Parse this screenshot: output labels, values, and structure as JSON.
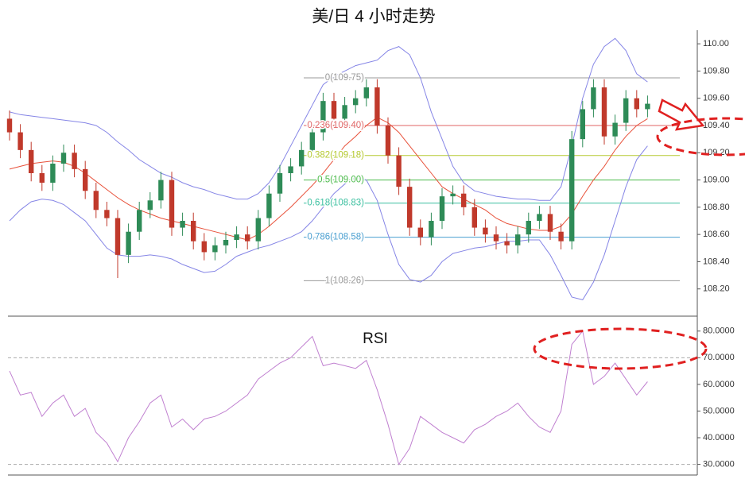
{
  "chart_data": [
    {
      "type": "candlestick",
      "title": "美/日  4 小时走势",
      "up_color": "#2e8b57",
      "down_color": "#c0392b",
      "open": [
        109.45,
        109.35,
        109.22,
        109.05,
        108.98,
        109.12,
        109.2,
        109.08,
        108.92,
        108.78,
        108.72,
        108.45,
        108.62,
        108.78,
        108.85,
        109.0,
        108.65,
        108.7,
        108.55,
        108.47,
        108.52,
        108.56,
        108.6,
        108.55,
        108.72,
        108.9,
        109.05,
        109.1,
        109.22,
        109.35,
        109.58,
        109.45,
        109.55,
        109.6,
        109.68,
        109.4,
        109.18,
        108.95,
        108.65,
        108.58,
        108.7,
        108.88,
        108.9,
        108.8,
        108.65,
        108.6,
        108.55,
        108.52,
        108.6,
        108.7,
        108.75,
        108.62,
        108.55,
        109.3,
        109.52,
        109.68,
        109.32,
        109.42,
        109.6,
        109.52
      ],
      "high": [
        109.51,
        109.41,
        109.28,
        109.11,
        109.18,
        109.26,
        109.26,
        109.14,
        108.98,
        108.84,
        108.78,
        108.68,
        108.84,
        108.91,
        109.06,
        109.06,
        108.76,
        108.76,
        108.61,
        108.58,
        108.62,
        108.66,
        108.66,
        108.78,
        108.96,
        109.11,
        109.16,
        109.28,
        109.41,
        109.64,
        109.64,
        109.61,
        109.66,
        109.74,
        109.74,
        109.46,
        109.24,
        109.01,
        108.71,
        108.76,
        108.94,
        108.96,
        108.96,
        108.86,
        108.71,
        108.66,
        108.61,
        108.66,
        108.76,
        108.81,
        108.81,
        108.68,
        109.36,
        109.58,
        109.74,
        109.74,
        109.48,
        109.66,
        109.66,
        109.62
      ],
      "low": [
        109.29,
        109.16,
        108.99,
        108.92,
        108.92,
        109.06,
        109.02,
        108.86,
        108.72,
        108.66,
        108.28,
        108.39,
        108.56,
        108.72,
        108.79,
        108.59,
        108.59,
        108.49,
        108.41,
        108.41,
        108.46,
        108.5,
        108.49,
        108.49,
        108.66,
        108.84,
        108.99,
        109.04,
        109.16,
        109.29,
        109.39,
        109.39,
        109.49,
        109.54,
        109.34,
        109.12,
        108.89,
        108.59,
        108.52,
        108.52,
        108.64,
        108.82,
        108.74,
        108.59,
        108.54,
        108.49,
        108.46,
        108.46,
        108.54,
        108.64,
        108.56,
        108.49,
        108.49,
        109.24,
        109.46,
        109.26,
        109.26,
        109.36,
        109.46,
        109.46
      ],
      "close": [
        109.35,
        109.22,
        109.05,
        108.98,
        109.12,
        109.2,
        109.08,
        108.92,
        108.78,
        108.72,
        108.45,
        108.62,
        108.78,
        108.85,
        109.0,
        108.65,
        108.7,
        108.55,
        108.47,
        108.52,
        108.56,
        108.6,
        108.55,
        108.72,
        108.9,
        109.05,
        109.1,
        109.22,
        109.35,
        109.58,
        109.45,
        109.55,
        109.6,
        109.68,
        109.4,
        109.18,
        108.95,
        108.65,
        108.58,
        108.7,
        108.88,
        108.9,
        108.8,
        108.65,
        108.6,
        108.55,
        108.52,
        108.6,
        108.7,
        108.75,
        108.62,
        108.55,
        109.3,
        109.52,
        109.68,
        109.32,
        109.42,
        109.6,
        109.52,
        109.56
      ],
      "lines": [
        {
          "color": "#e8513a",
          "values": [
            109.08,
            109.1,
            109.12,
            109.13,
            109.14,
            109.13,
            109.1,
            109.05,
            108.99,
            108.93,
            108.87,
            108.82,
            108.78,
            108.75,
            108.72,
            108.7,
            108.68,
            108.66,
            108.64,
            108.62,
            108.6,
            108.58,
            108.56,
            108.6,
            108.66,
            108.73,
            108.8,
            108.88,
            108.96,
            109.05,
            109.15,
            109.25,
            109.32,
            109.4,
            109.46,
            109.42,
            109.35,
            109.25,
            109.15,
            109.05,
            108.95,
            108.9,
            108.86,
            108.82,
            108.78,
            108.72,
            108.68,
            108.66,
            108.64,
            108.63,
            108.63,
            108.66,
            108.75,
            108.88,
            109.0,
            109.1,
            109.22,
            109.32,
            109.4,
            109.45
          ]
        },
        {
          "color": "#8585e6",
          "values": [
            109.5,
            109.48,
            109.47,
            109.46,
            109.45,
            109.44,
            109.43,
            109.42,
            109.4,
            109.35,
            109.28,
            109.22,
            109.15,
            109.1,
            109.05,
            109.02,
            108.98,
            108.95,
            108.93,
            108.9,
            108.88,
            108.86,
            108.86,
            108.9,
            108.98,
            109.1,
            109.25,
            109.4,
            109.55,
            109.7,
            109.76,
            109.8,
            109.84,
            109.86,
            109.88,
            109.95,
            109.98,
            109.92,
            109.75,
            109.5,
            109.3,
            109.1,
            108.98,
            108.92,
            108.9,
            108.88,
            108.87,
            108.86,
            108.86,
            108.85,
            108.85,
            108.95,
            109.25,
            109.6,
            109.85,
            109.98,
            110.04,
            109.95,
            109.78,
            109.72
          ]
        },
        {
          "color": "#8585e6",
          "values": [
            108.7,
            108.78,
            108.84,
            108.86,
            108.85,
            108.82,
            108.76,
            108.7,
            108.6,
            108.5,
            108.45,
            108.44,
            108.44,
            108.45,
            108.44,
            108.42,
            108.38,
            108.35,
            108.32,
            108.33,
            108.38,
            108.44,
            108.47,
            108.5,
            108.52,
            108.55,
            108.58,
            108.62,
            108.7,
            108.8,
            108.9,
            108.97,
            109.02,
            109.0,
            108.85,
            108.6,
            108.38,
            108.27,
            108.25,
            108.3,
            108.4,
            108.46,
            108.48,
            108.5,
            108.51,
            108.53,
            108.55,
            108.55,
            108.56,
            108.56,
            108.45,
            108.3,
            108.14,
            108.12,
            108.25,
            108.45,
            108.7,
            108.95,
            109.15,
            109.25
          ]
        }
      ],
      "levels": [
        {
          "label": "0(109.75)",
          "value": 109.75,
          "color": "#999999"
        },
        {
          "label": "0.236(109.40)",
          "value": 109.4,
          "color": "#e06666"
        },
        {
          "label": "0.382(109.18)",
          "value": 109.18,
          "color": "#b5c930"
        },
        {
          "label": "0.5(109.00)",
          "value": 109.0,
          "color": "#4cbb4c"
        },
        {
          "label": "0.618(108.83)",
          "value": 108.83,
          "color": "#3cc0a0"
        },
        {
          "label": "0.786(108.58)",
          "value": 108.58,
          "color": "#4a9fd0"
        },
        {
          "label": "1(108.26)",
          "value": 108.26,
          "color": "#999999"
        }
      ],
      "ylim": [
        108.0,
        110.1
      ],
      "yticks": [
        {
          "value": 108.2,
          "label": "108.20"
        },
        {
          "value": 108.4,
          "label": "108.40"
        },
        {
          "value": 108.6,
          "label": "108.60"
        },
        {
          "value": 108.8,
          "label": "108.80"
        },
        {
          "value": 109.0,
          "label": "109.00"
        },
        {
          "value": 109.2,
          "label": "109.20"
        },
        {
          "value": 109.4,
          "label": "109.40"
        },
        {
          "value": 109.6,
          "label": "109.60"
        },
        {
          "value": 109.8,
          "label": "109.80"
        },
        {
          "value": 110.0,
          "label": "110.00"
        }
      ]
    },
    {
      "type": "line",
      "title": "RSI",
      "color": "#c080d0",
      "values": [
        65,
        56,
        57,
        48,
        53,
        56,
        48,
        51,
        42,
        38,
        31,
        40,
        46,
        53,
        56,
        44,
        47,
        43,
        47,
        48,
        50,
        53,
        56,
        62,
        65,
        68,
        70,
        74,
        78,
        67,
        68,
        67,
        66,
        69,
        58,
        45,
        30,
        36,
        48,
        45,
        42,
        40,
        38,
        43,
        45,
        48,
        50,
        53,
        48,
        44,
        42,
        50,
        75,
        80,
        60,
        63,
        68,
        62,
        56,
        61
      ],
      "hlines": [
        70,
        30
      ],
      "ylim": [
        26,
        85
      ],
      "yticks": [
        {
          "value": 30,
          "label": "30.0000"
        },
        {
          "value": 40,
          "label": "40.0000"
        },
        {
          "value": 50,
          "label": "50.0000"
        },
        {
          "value": 60,
          "label": "60.0000"
        },
        {
          "value": 70,
          "label": "70.0000"
        },
        {
          "value": 80,
          "label": "80.0000"
        }
      ]
    }
  ]
}
